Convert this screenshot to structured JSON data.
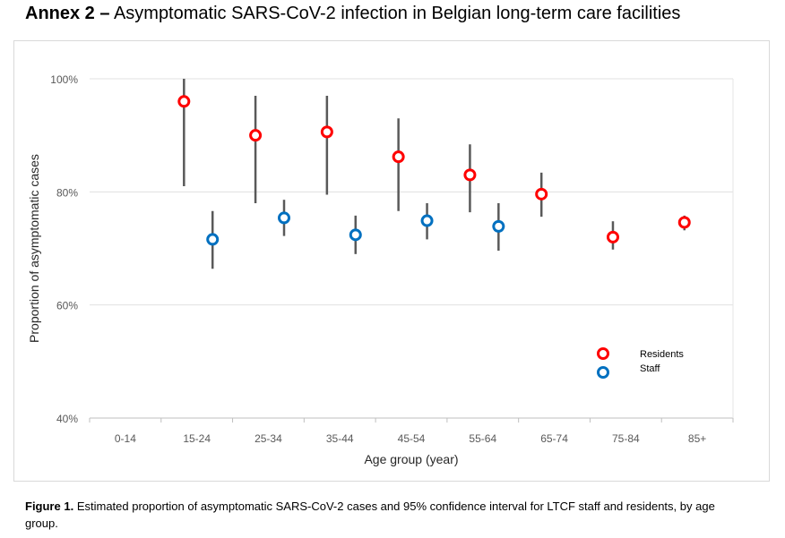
{
  "heading": {
    "prefix": "Annex 2 –",
    "text": "Asymptomatic SARS-CoV-2 infection in Belgian long-term care facilities"
  },
  "caption": {
    "label": "Figure 1.",
    "text": "Estimated proportion of asymptomatic SARS-CoV-2 cases and 95% confidence interval for LTCF staff and residents, by age group."
  },
  "chart_data": {
    "type": "scatter",
    "xlabel": "Age group (year)",
    "ylabel": "Proportion of asymptomatic cases",
    "categories": [
      "0-14",
      "15-24",
      "25-34",
      "35-44",
      "45-54",
      "55-64",
      "65-74",
      "75-84",
      "85+"
    ],
    "ylim": [
      40,
      100
    ],
    "yticks": [
      "40%",
      "60%",
      "80%",
      "100%"
    ],
    "grid": true,
    "legend_position": "bottom-right",
    "series": [
      {
        "name": "Residents",
        "color": "#ff0000",
        "points": [
          {
            "category": "15-24",
            "value": 96,
            "lower": 81,
            "upper": 100
          },
          {
            "category": "25-34",
            "value": 90,
            "lower": 78,
            "upper": 97
          },
          {
            "category": "35-44",
            "value": 90.6,
            "lower": 79.5,
            "upper": 97
          },
          {
            "category": "45-54",
            "value": 86.2,
            "lower": 76.6,
            "upper": 93
          },
          {
            "category": "55-64",
            "value": 83,
            "lower": 76.4,
            "upper": 88.4
          },
          {
            "category": "65-74",
            "value": 79.6,
            "lower": 75.6,
            "upper": 83.4
          },
          {
            "category": "75-84",
            "value": 72,
            "lower": 69.8,
            "upper": 74.8
          },
          {
            "category": "85+",
            "value": 74.6,
            "lower": 73.2,
            "upper": 75.8
          }
        ]
      },
      {
        "name": "Staff",
        "color": "#0070c0",
        "points": [
          {
            "category": "15-24",
            "value": 71.6,
            "lower": 66.4,
            "upper": 76.6
          },
          {
            "category": "25-34",
            "value": 75.4,
            "lower": 72.2,
            "upper": 78.6
          },
          {
            "category": "35-44",
            "value": 72.4,
            "lower": 69,
            "upper": 75.8
          },
          {
            "category": "45-54",
            "value": 74.9,
            "lower": 71.6,
            "upper": 78
          },
          {
            "category": "55-64",
            "value": 73.9,
            "lower": 69.6,
            "upper": 78
          }
        ]
      }
    ]
  }
}
